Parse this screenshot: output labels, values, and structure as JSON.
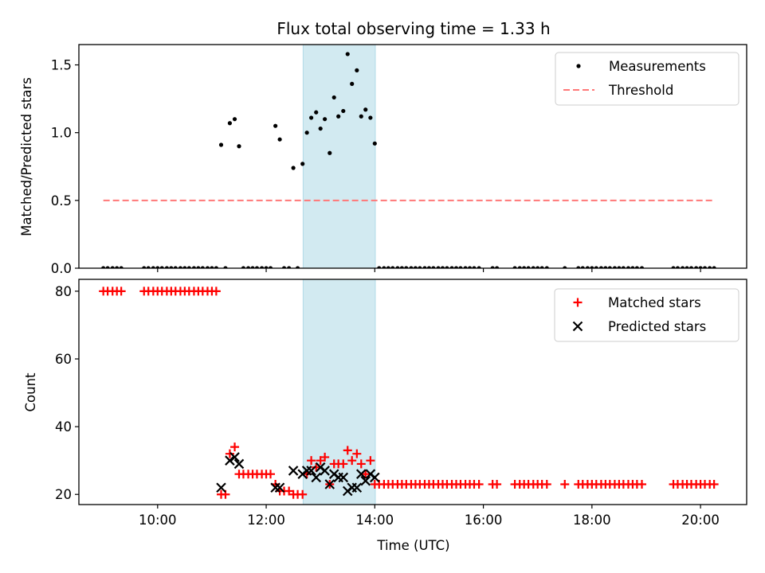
{
  "chart_data": [
    {
      "type": "scatter",
      "title": "Flux total observing time = 1.33 h",
      "ylabel": "Matched/Predicted stars",
      "xlabel": "",
      "xlim": [
        8.55,
        20.85
      ],
      "ylim": [
        0,
        1.65
      ],
      "yticks": [
        0.0,
        0.5,
        1.0,
        1.5
      ],
      "ytick_labels": [
        "0.0",
        "0.5",
        "1.0",
        "1.5"
      ],
      "xticks": [
        10,
        12,
        14,
        16,
        18,
        20
      ],
      "grid": false,
      "legend": "top-right",
      "shaded_interval": [
        12.68,
        14.01
      ],
      "shaded_color": "#add8e6",
      "series": [
        {
          "name": "Measurements",
          "kind": "scatter",
          "color": "#000000",
          "x": [
            9.0,
            9.08,
            9.17,
            9.25,
            9.33,
            9.75,
            9.83,
            9.92,
            10.0,
            10.08,
            10.17,
            10.25,
            10.33,
            10.42,
            10.5,
            10.58,
            10.67,
            10.75,
            10.83,
            10.92,
            11.0,
            11.08,
            11.17,
            11.25,
            11.33,
            11.42,
            11.5,
            11.58,
            11.67,
            11.75,
            11.83,
            11.92,
            12.0,
            12.08,
            12.17,
            12.25,
            12.33,
            12.42,
            12.5,
            12.58,
            12.67,
            12.75,
            12.83,
            12.92,
            13.0,
            13.08,
            13.17,
            13.25,
            13.33,
            13.42,
            13.5,
            13.58,
            13.67,
            13.75,
            13.83,
            13.92,
            14.0,
            14.08,
            14.17,
            14.25,
            14.33,
            14.42,
            14.5,
            14.58,
            14.67,
            14.75,
            14.83,
            14.92,
            15.0,
            15.08,
            15.17,
            15.25,
            15.33,
            15.42,
            15.5,
            15.58,
            15.67,
            15.75,
            15.83,
            15.92,
            16.17,
            16.25,
            16.58,
            16.67,
            16.75,
            16.83,
            16.92,
            17.0,
            17.08,
            17.17,
            17.5,
            17.75,
            17.83,
            17.92,
            18.0,
            18.08,
            18.17,
            18.25,
            18.33,
            18.42,
            18.5,
            18.58,
            18.67,
            18.75,
            18.83,
            18.92,
            19.5,
            19.58,
            19.67,
            19.75,
            19.83,
            19.92,
            20.0,
            20.08,
            20.17,
            20.25
          ],
          "y": [
            0,
            0,
            0,
            0,
            0,
            0,
            0,
            0,
            0,
            0,
            0,
            0,
            0,
            0,
            0,
            0,
            0,
            0,
            0,
            0,
            0,
            0,
            0.91,
            0,
            1.07,
            1.1,
            0.9,
            0,
            0,
            0,
            0,
            0,
            0,
            0,
            1.05,
            0.95,
            0,
            0,
            0.74,
            0,
            0.77,
            1.0,
            1.11,
            1.15,
            1.03,
            1.1,
            0.85,
            1.26,
            1.12,
            1.16,
            1.58,
            1.36,
            1.46,
            1.12,
            1.17,
            1.11,
            0.92,
            0,
            0,
            0,
            0,
            0,
            0,
            0,
            0,
            0,
            0,
            0,
            0,
            0,
            0,
            0,
            0,
            0,
            0,
            0,
            0,
            0,
            0,
            0,
            0,
            0,
            0,
            0,
            0,
            0,
            0,
            0,
            0,
            0,
            0,
            0,
            0,
            0,
            0,
            0,
            0,
            0,
            0,
            0,
            0,
            0,
            0,
            0,
            0,
            0,
            0,
            0,
            0,
            0,
            0,
            0,
            0,
            0,
            0,
            0
          ]
        },
        {
          "name": "Threshold",
          "kind": "dashed-line",
          "color": "#ff7777",
          "x": [
            9.0,
            20.25
          ],
          "y": [
            0.5,
            0.5
          ]
        }
      ]
    },
    {
      "type": "scatter",
      "title": "",
      "xlabel": "Time (UTC)",
      "ylabel": "Count",
      "xlim": [
        8.55,
        20.85
      ],
      "ylim": [
        17,
        83.5
      ],
      "yticks": [
        20,
        40,
        60,
        80
      ],
      "ytick_labels": [
        "20",
        "40",
        "60",
        "80"
      ],
      "xticks": [
        10,
        12,
        14,
        16,
        18,
        20
      ],
      "xtick_labels": [
        "10:00",
        "12:00",
        "14:00",
        "16:00",
        "18:00",
        "20:00"
      ],
      "grid": false,
      "legend": "top-right",
      "shaded_interval": [
        12.68,
        14.01
      ],
      "shaded_color": "#add8e6",
      "series": [
        {
          "name": "Matched stars",
          "kind": "plus",
          "color": "#ff0000",
          "x": [
            9.0,
            9.08,
            9.17,
            9.25,
            9.33,
            9.75,
            9.83,
            9.92,
            10.0,
            10.08,
            10.17,
            10.25,
            10.33,
            10.42,
            10.5,
            10.58,
            10.67,
            10.75,
            10.83,
            10.92,
            11.0,
            11.08,
            11.17,
            11.25,
            11.33,
            11.42,
            11.5,
            11.58,
            11.67,
            11.75,
            11.83,
            11.92,
            12.0,
            12.08,
            12.17,
            12.25,
            12.33,
            12.42,
            12.5,
            12.58,
            12.67,
            12.75,
            12.83,
            12.92,
            13.0,
            13.08,
            13.17,
            13.25,
            13.33,
            13.42,
            13.5,
            13.58,
            13.67,
            13.75,
            13.83,
            13.92,
            14.0,
            14.08,
            14.17,
            14.25,
            14.33,
            14.42,
            14.5,
            14.58,
            14.67,
            14.75,
            14.83,
            14.92,
            15.0,
            15.08,
            15.17,
            15.25,
            15.33,
            15.42,
            15.5,
            15.58,
            15.67,
            15.75,
            15.83,
            15.92,
            16.17,
            16.25,
            16.58,
            16.67,
            16.75,
            16.83,
            16.92,
            17.0,
            17.08,
            17.17,
            17.5,
            17.75,
            17.83,
            17.92,
            18.0,
            18.08,
            18.17,
            18.25,
            18.33,
            18.42,
            18.5,
            18.58,
            18.67,
            18.75,
            18.83,
            18.92,
            19.5,
            19.58,
            19.67,
            19.75,
            19.83,
            19.92,
            20.0,
            20.08,
            20.17,
            20.25
          ],
          "y": [
            80,
            80,
            80,
            80,
            80,
            80,
            80,
            80,
            80,
            80,
            80,
            80,
            80,
            80,
            80,
            80,
            80,
            80,
            80,
            80,
            80,
            80,
            20,
            20,
            32,
            34,
            26,
            26,
            26,
            26,
            26,
            26,
            26,
            26,
            23,
            21,
            21,
            21,
            20,
            20,
            20,
            26,
            30,
            28,
            30,
            31,
            23,
            29,
            29,
            29,
            33,
            30,
            32,
            29,
            26,
            30,
            23,
            23,
            23,
            23,
            23,
            23,
            23,
            23,
            23,
            23,
            23,
            23,
            23,
            23,
            23,
            23,
            23,
            23,
            23,
            23,
            23,
            23,
            23,
            23,
            23,
            23,
            23,
            23,
            23,
            23,
            23,
            23,
            23,
            23,
            23,
            23,
            23,
            23,
            23,
            23,
            23,
            23,
            23,
            23,
            23,
            23,
            23,
            23,
            23,
            23,
            23,
            23,
            23,
            23,
            23,
            23,
            23,
            23,
            23,
            23
          ]
        },
        {
          "name": "Predicted stars",
          "kind": "x",
          "color": "#000000",
          "x": [
            11.17,
            11.33,
            11.42,
            11.5,
            12.17,
            12.25,
            12.5,
            12.67,
            12.75,
            12.83,
            12.92,
            13.0,
            13.08,
            13.17,
            13.25,
            13.33,
            13.42,
            13.5,
            13.58,
            13.67,
            13.75,
            13.83,
            13.92,
            14.0
          ],
          "y": [
            22,
            30,
            31,
            29,
            22,
            22,
            27,
            26,
            27,
            27,
            25,
            28,
            27,
            23,
            26,
            25,
            25,
            21,
            22,
            22,
            26,
            24,
            26,
            25
          ]
        }
      ]
    }
  ]
}
